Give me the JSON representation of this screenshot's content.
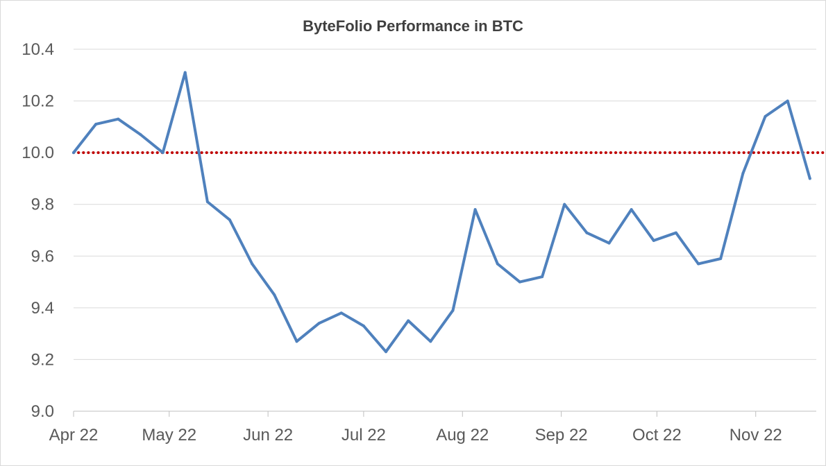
{
  "chart_data": {
    "type": "line",
    "title": "ByteFolio Performance in BTC",
    "xlabel": "",
    "ylabel": "",
    "ylim": [
      9.0,
      10.4
    ],
    "y_ticks": [
      "9.0",
      "9.2",
      "9.4",
      "9.6",
      "9.8",
      "10.0",
      "10.2",
      "10.4"
    ],
    "x_ticks": [
      {
        "label": "Apr 22",
        "date": "2022-04-01"
      },
      {
        "label": "May 22",
        "date": "2022-05-01"
      },
      {
        "label": "Jun 22",
        "date": "2022-06-01"
      },
      {
        "label": "Jul 22",
        "date": "2022-07-01"
      },
      {
        "label": "Aug 22",
        "date": "2022-08-01"
      },
      {
        "label": "Sep 22",
        "date": "2022-09-01"
      },
      {
        "label": "Oct 22",
        "date": "2022-10-01"
      },
      {
        "label": "Nov 22",
        "date": "2022-11-01"
      }
    ],
    "grid": true,
    "series": [
      {
        "color": "#4f81bd",
        "points": [
          [
            "2022-04-01",
            10.0
          ],
          [
            "2022-04-08",
            10.11
          ],
          [
            "2022-04-15",
            10.13
          ],
          [
            "2022-04-22",
            10.07
          ],
          [
            "2022-04-29",
            10.0
          ],
          [
            "2022-05-06",
            10.31
          ],
          [
            "2022-05-13",
            9.81
          ],
          [
            "2022-05-20",
            9.74
          ],
          [
            "2022-05-27",
            9.57
          ],
          [
            "2022-06-03",
            9.45
          ],
          [
            "2022-06-10",
            9.27
          ],
          [
            "2022-06-17",
            9.34
          ],
          [
            "2022-06-24",
            9.38
          ],
          [
            "2022-07-01",
            9.33
          ],
          [
            "2022-07-08",
            9.23
          ],
          [
            "2022-07-15",
            9.35
          ],
          [
            "2022-07-22",
            9.27
          ],
          [
            "2022-07-29",
            9.39
          ],
          [
            "2022-08-05",
            9.78
          ],
          [
            "2022-08-12",
            9.57
          ],
          [
            "2022-08-19",
            9.5
          ],
          [
            "2022-08-26",
            9.52
          ],
          [
            "2022-09-02",
            9.8
          ],
          [
            "2022-09-09",
            9.69
          ],
          [
            "2022-09-16",
            9.65
          ],
          [
            "2022-09-23",
            9.78
          ],
          [
            "2022-09-30",
            9.66
          ],
          [
            "2022-10-07",
            9.69
          ],
          [
            "2022-10-14",
            9.57
          ],
          [
            "2022-10-21",
            9.59
          ],
          [
            "2022-10-28",
            9.92
          ],
          [
            "2022-11-04",
            10.14
          ],
          [
            "2022-11-11",
            10.2
          ],
          [
            "2022-11-18",
            9.9
          ]
        ]
      }
    ],
    "reference_line": {
      "y": 10.0,
      "color": "#c00000",
      "style": "dotted"
    }
  }
}
